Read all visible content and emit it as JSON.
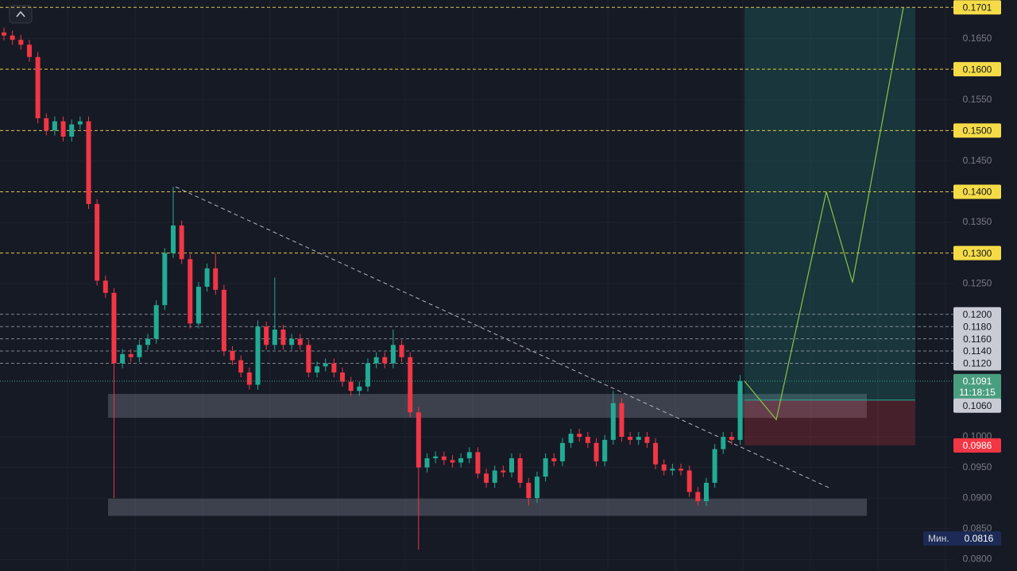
{
  "chart_data": {
    "type": "candlestick",
    "up_color": "#22ab94",
    "down_color": "#f23645",
    "open": [
      0.166,
      0.1655,
      0.1648,
      0.164,
      0.162,
      0.152,
      0.15,
      0.1515,
      0.149,
      0.151,
      0.1515,
      0.138,
      0.1255,
      0.1235,
      0.112,
      0.1135,
      0.113,
      0.115,
      0.116,
      0.1215,
      0.13,
      0.1345,
      0.129,
      0.1185,
      0.1245,
      0.1275,
      0.124,
      0.114,
      0.1125,
      0.1105,
      0.1085,
      0.118,
      0.115,
      0.1175,
      0.115,
      0.116,
      0.115,
      0.1105,
      0.1115,
      0.112,
      0.1105,
      0.109,
      0.1075,
      0.1082,
      0.112,
      0.113,
      0.112,
      0.115,
      0.113,
      0.104,
      0.095,
      0.0965,
      0.0968,
      0.0962,
      0.0958,
      0.0965,
      0.0975,
      0.094,
      0.0925,
      0.0945,
      0.0942,
      0.0965,
      0.0925,
      0.09,
      0.0935,
      0.0965,
      0.096,
      0.099,
      0.1005,
      0.1,
      0.099,
      0.096,
      0.0995,
      0.1055,
      0.1,
      0.0995,
      0.1,
      0.099,
      0.0955,
      0.0945,
      0.0948,
      0.0945,
      0.091,
      0.0895,
      0.0925,
      0.098,
      0.1,
      0.0995
    ],
    "high": [
      0.1668,
      0.1663,
      0.1656,
      0.1648,
      0.1628,
      0.1528,
      0.1523,
      0.1523,
      0.1518,
      0.1523,
      0.1523,
      0.1388,
      0.1263,
      0.1243,
      0.1143,
      0.1143,
      0.1158,
      0.1168,
      0.1223,
      0.1308,
      0.1408,
      0.1353,
      0.1298,
      0.1253,
      0.1283,
      0.13,
      0.1248,
      0.1148,
      0.1133,
      0.1113,
      0.119,
      0.1188,
      0.126,
      0.1183,
      0.1168,
      0.1168,
      0.1158,
      0.1123,
      0.1128,
      0.1128,
      0.1113,
      0.1098,
      0.109,
      0.1128,
      0.1138,
      0.1138,
      0.1175,
      0.1158,
      0.1138,
      0.1048,
      0.0973,
      0.0976,
      0.0976,
      0.097,
      0.0973,
      0.0983,
      0.0983,
      0.0948,
      0.0953,
      0.0953,
      0.0973,
      0.0973,
      0.0933,
      0.0943,
      0.0973,
      0.0973,
      0.0998,
      0.1013,
      0.1013,
      0.1008,
      0.0998,
      0.1003,
      0.1075,
      0.1063,
      0.1008,
      0.1008,
      0.1008,
      0.0998,
      0.0963,
      0.0956,
      0.0956,
      0.0953,
      0.0918,
      0.0933,
      0.0988,
      0.1008,
      0.1008,
      0.1101
    ],
    "low": [
      0.1647,
      0.164,
      0.1632,
      0.1612,
      0.1512,
      0.1492,
      0.1492,
      0.1482,
      0.1482,
      0.1502,
      0.1372,
      0.1247,
      0.1227,
      0.09,
      0.1112,
      0.1122,
      0.1122,
      0.1142,
      0.1152,
      0.1207,
      0.1292,
      0.1282,
      0.1177,
      0.1177,
      0.1237,
      0.1232,
      0.1132,
      0.1117,
      0.1097,
      0.1077,
      0.1077,
      0.1142,
      0.1142,
      0.1142,
      0.1142,
      0.1142,
      0.1097,
      0.1097,
      0.1107,
      0.1097,
      0.1082,
      0.1067,
      0.1067,
      0.1074,
      0.1112,
      0.1112,
      0.1112,
      0.1122,
      0.1032,
      0.0816,
      0.0942,
      0.0957,
      0.0954,
      0.095,
      0.095,
      0.0957,
      0.0932,
      0.0917,
      0.0917,
      0.0934,
      0.0934,
      0.0917,
      0.0888,
      0.0892,
      0.0927,
      0.0952,
      0.0952,
      0.0982,
      0.0992,
      0.0982,
      0.0952,
      0.0952,
      0.0987,
      0.0992,
      0.0987,
      0.0987,
      0.0982,
      0.0947,
      0.0937,
      0.0937,
      0.0937,
      0.0902,
      0.0888,
      0.0887,
      0.0917,
      0.0972,
      0.0987,
      0.0987
    ],
    "close": [
      0.1655,
      0.1648,
      0.164,
      0.162,
      0.152,
      0.15,
      0.1515,
      0.149,
      0.151,
      0.1515,
      0.138,
      0.1255,
      0.1235,
      0.112,
      0.1135,
      0.113,
      0.115,
      0.116,
      0.1215,
      0.13,
      0.1345,
      0.129,
      0.1185,
      0.1245,
      0.1275,
      0.124,
      0.114,
      0.1125,
      0.1105,
      0.1085,
      0.118,
      0.115,
      0.1175,
      0.115,
      0.116,
      0.115,
      0.1105,
      0.1115,
      0.112,
      0.1105,
      0.109,
      0.1075,
      0.1082,
      0.112,
      0.113,
      0.112,
      0.115,
      0.113,
      0.104,
      0.095,
      0.0965,
      0.0968,
      0.0962,
      0.0958,
      0.0965,
      0.0975,
      0.094,
      0.0925,
      0.0945,
      0.0942,
      0.0965,
      0.0925,
      0.09,
      0.0935,
      0.0965,
      0.096,
      0.099,
      0.1005,
      0.1,
      0.099,
      0.096,
      0.0995,
      0.1055,
      0.1,
      0.0995,
      0.1,
      0.099,
      0.0955,
      0.0945,
      0.0948,
      0.0945,
      0.091,
      0.0895,
      0.0925,
      0.098,
      0.1,
      0.0995,
      0.1091
    ],
    "ylim": [
      0.0781,
      0.1713
    ],
    "yticks": [
      {
        "value": 0.165,
        "label": "0.1650"
      },
      {
        "value": 0.155,
        "label": "0.1550"
      },
      {
        "value": 0.145,
        "label": "0.1450"
      },
      {
        "value": 0.135,
        "label": "0.1350"
      },
      {
        "value": 0.125,
        "label": "0.1250"
      },
      {
        "value": 0.1,
        "label": "0.1000"
      },
      {
        "value": 0.095,
        "label": "0.0950"
      },
      {
        "value": 0.09,
        "label": "0.0900"
      },
      {
        "value": 0.085,
        "label": "0.0850"
      },
      {
        "value": 0.08,
        "label": "0.0800"
      }
    ],
    "target_levels": {
      "color": "#f5dc47",
      "values": [
        0.1701,
        {
          "value": 0.16,
          "label": "0.1600"
        },
        {
          "value": 0.15,
          "label": "0.1500"
        },
        {
          "value": 0.14,
          "label": "0.1400"
        },
        {
          "value": 0.13,
          "label": "0.1300"
        }
      ]
    },
    "resistance_levels": {
      "color": "#c9ccd4",
      "values": [
        {
          "value": 0.12,
          "label": "0.1200"
        },
        {
          "value": 0.118,
          "label": "0.1180"
        },
        {
          "value": 0.116,
          "label": "0.1160"
        },
        {
          "value": 0.114,
          "label": "0.1140"
        },
        {
          "value": 0.112,
          "label": "0.1120"
        }
      ]
    },
    "last_price": {
      "value": 0.1091,
      "countdown": "11:18:15",
      "color": "#4a9e80"
    },
    "position": {
      "target": 0.1701,
      "entry": {
        "value": 0.106,
        "label": "0.1060"
      },
      "stop": 0.0986,
      "stop_color": "#f23645"
    },
    "zones": [
      [
        0.107,
        0.1031
      ],
      [
        0.0899,
        0.0871
      ]
    ],
    "trendline": [
      0.1408,
      0.0916
    ],
    "projection": [
      0.1091,
      0.1028,
      0.14,
      0.1252,
      0.1701
    ],
    "minimum": {
      "label": "Мин.",
      "value": 0.0816
    }
  }
}
